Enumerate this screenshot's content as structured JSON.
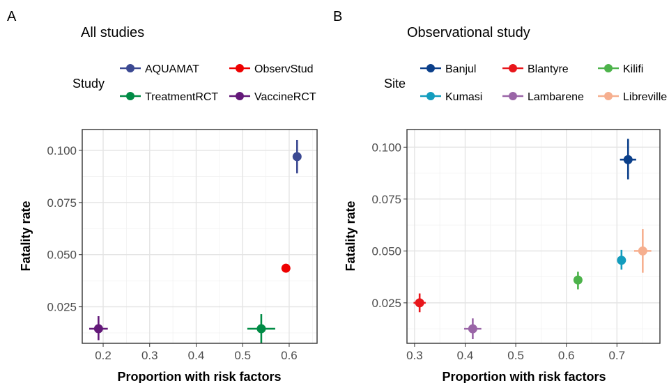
{
  "chart_data": [
    {
      "type": "scatter",
      "panel_label": "A",
      "title": "All studies",
      "xlabel": "Proportion with risk factors",
      "ylabel": "Fatality rate",
      "xlim": [
        0.155,
        0.66
      ],
      "ylim": [
        0.0075,
        0.11
      ],
      "xticks": [
        0.2,
        0.3,
        0.4,
        0.5,
        0.6
      ],
      "xtick_labels": [
        "0.2",
        "0.3",
        "0.4",
        "0.5",
        "0.6"
      ],
      "yticks": [
        0.025,
        0.05,
        0.075,
        0.1
      ],
      "ytick_labels": [
        "0.025",
        "0.050",
        "0.075",
        "0.100"
      ],
      "grid": true,
      "legend": {
        "title": "Study",
        "position": "top",
        "columns": 2,
        "entries": [
          {
            "label": "AQUAMAT",
            "color": "#3B4992"
          },
          {
            "label": "ObservStud",
            "color": "#EE0000"
          },
          {
            "label": "TreatmentRCT",
            "color": "#008B45"
          },
          {
            "label": "VaccineRCT",
            "color": "#631879"
          }
        ]
      },
      "points": [
        {
          "series": "AQUAMAT",
          "color": "#3B4992",
          "x": 0.617,
          "y": 0.097,
          "x_err": [
            0.608,
            0.626
          ],
          "y_err": [
            0.089,
            0.105
          ]
        },
        {
          "series": "ObservStud",
          "color": "#EE0000",
          "x": 0.593,
          "y": 0.0435,
          "x_err": [
            0.588,
            0.598
          ],
          "y_err": [
            0.042,
            0.045
          ]
        },
        {
          "series": "TreatmentRCT",
          "color": "#008B45",
          "x": 0.54,
          "y": 0.0145,
          "x_err": [
            0.51,
            0.57
          ],
          "y_err": [
            0.0075,
            0.0215
          ]
        },
        {
          "series": "VaccineRCT",
          "color": "#631879",
          "x": 0.19,
          "y": 0.0145,
          "x_err": [
            0.17,
            0.21
          ],
          "y_err": [
            0.009,
            0.0205
          ]
        }
      ]
    },
    {
      "type": "scatter",
      "panel_label": "B",
      "title": "Observational study",
      "xlabel": "Proportion with risk factors",
      "ylabel": "Fatality rate",
      "xlim": [
        0.285,
        0.785
      ],
      "ylim": [
        0.0055,
        0.1085
      ],
      "xticks": [
        0.3,
        0.4,
        0.5,
        0.6,
        0.7
      ],
      "xtick_labels": [
        "0.3",
        "0.4",
        "0.5",
        "0.6",
        "0.7"
      ],
      "yticks": [
        0.025,
        0.05,
        0.075,
        0.1
      ],
      "ytick_labels": [
        "0.025",
        "0.050",
        "0.075",
        "0.100"
      ],
      "grid": true,
      "legend": {
        "title": "Site",
        "position": "top",
        "columns": 3,
        "entries": [
          {
            "label": "Banjul",
            "color": "#0B3F8A"
          },
          {
            "label": "Blantyre",
            "color": "#E8161B"
          },
          {
            "label": "Kilifi",
            "color": "#4DB34B"
          },
          {
            "label": "Kumasi",
            "color": "#139DBE"
          },
          {
            "label": "Lambarene",
            "color": "#9A65A7"
          },
          {
            "label": "Libreville",
            "color": "#F6AF8F"
          }
        ]
      },
      "points": [
        {
          "series": "Banjul",
          "color": "#0B3F8A",
          "x": 0.722,
          "y": 0.094,
          "x_err": [
            0.706,
            0.738
          ],
          "y_err": [
            0.0845,
            0.104
          ]
        },
        {
          "series": "Blantyre",
          "color": "#E8161B",
          "x": 0.31,
          "y": 0.025,
          "x_err": [
            0.298,
            0.322
          ],
          "y_err": [
            0.0205,
            0.0295
          ]
        },
        {
          "series": "Kilifi",
          "color": "#4DB34B",
          "x": 0.623,
          "y": 0.036,
          "x_err": [
            0.617,
            0.629
          ],
          "y_err": [
            0.0315,
            0.04
          ]
        },
        {
          "series": "Kumasi",
          "color": "#139DBE",
          "x": 0.709,
          "y": 0.0455,
          "x_err": [
            0.704,
            0.714
          ],
          "y_err": [
            0.041,
            0.0505
          ]
        },
        {
          "series": "Lambarene",
          "color": "#9A65A7",
          "x": 0.415,
          "y": 0.0125,
          "x_err": [
            0.398,
            0.432
          ],
          "y_err": [
            0.0075,
            0.0175
          ]
        },
        {
          "series": "Libreville",
          "color": "#F6AF8F",
          "x": 0.751,
          "y": 0.05,
          "x_err": [
            0.734,
            0.768
          ],
          "y_err": [
            0.0395,
            0.0605
          ]
        }
      ]
    }
  ]
}
